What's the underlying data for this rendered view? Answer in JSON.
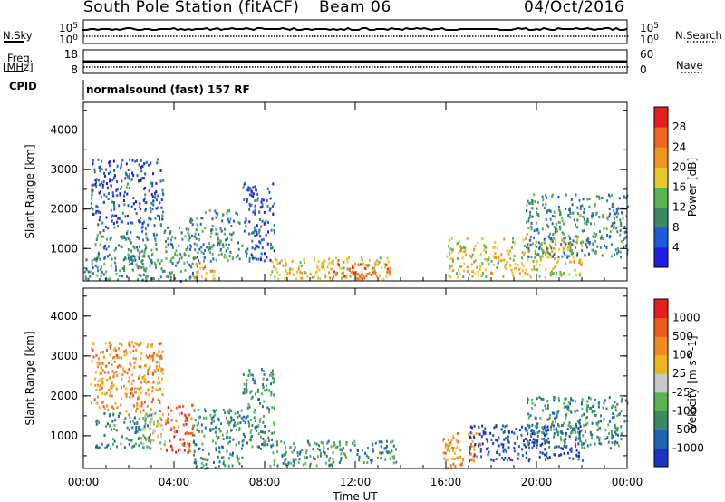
{
  "header": {
    "station": "South Pole Station (fitACF)",
    "beam": "Beam 06",
    "date": "04/Oct/2016"
  },
  "strip": {
    "nsky_label": "N.Sky",
    "nsky_ticks": [
      "10^5",
      "10^0"
    ],
    "nsearch_label": "N.Search",
    "nsearch_ticks": [
      "10^5",
      "10^0"
    ],
    "freq_label": "Freq.",
    "freq_unit": "[MHz]",
    "freq_ticks": [
      "18",
      "8"
    ],
    "nave_label": "Nave",
    "nave_ticks": [
      "60",
      "0"
    ],
    "cpid_label": "CPID",
    "cpid_value": "normalsound (fast) 157 RF"
  },
  "chart_data": [
    {
      "type": "heatmap",
      "title": "",
      "xlabel": "Time UT",
      "ylabel": "Slant Range [km]",
      "x_ticks": [
        "00:00",
        "04:00",
        "08:00",
        "12:00",
        "16:00",
        "20:00",
        "00:00"
      ],
      "xlim_hours": [
        0,
        24
      ],
      "y_ticks": [
        1000,
        2000,
        3000,
        4000
      ],
      "ylim": [
        180,
        4700
      ],
      "colorbar": {
        "label": "Power [dB]",
        "ticks": [
          "4",
          "8",
          "12",
          "16",
          "20",
          "24",
          "28"
        ],
        "colors": [
          "#1e1ee6",
          "#1e5adc",
          "#3c8a64",
          "#5ab452",
          "#e6c828",
          "#f0961e",
          "#f0641e",
          "#e61e1e"
        ]
      },
      "regions": [
        {
          "t": [
            0.5,
            3.2
          ],
          "r": [
            700,
            1600
          ],
          "level": 2
        },
        {
          "t": [
            0.3,
            3.5
          ],
          "r": [
            1600,
            3300
          ],
          "level": 1
        },
        {
          "t": [
            3.5,
            4.6
          ],
          "r": [
            700,
            1600
          ],
          "level": 2
        },
        {
          "t": [
            4.6,
            7.0
          ],
          "r": [
            700,
            2000
          ],
          "level": 2
        },
        {
          "t": [
            7.0,
            8.4
          ],
          "r": [
            700,
            2700
          ],
          "level": 1
        },
        {
          "t": [
            0.0,
            5.0
          ],
          "r": [
            200,
            800
          ],
          "level": 2
        },
        {
          "t": [
            4.8,
            5.8
          ],
          "r": [
            250,
            700
          ],
          "level": 5
        },
        {
          "t": [
            8.2,
            13.5
          ],
          "r": [
            250,
            800
          ],
          "level": 4
        },
        {
          "t": [
            11.0,
            13.5
          ],
          "r": [
            250,
            700
          ],
          "level": 6
        },
        {
          "t": [
            16.0,
            22.0
          ],
          "r": [
            300,
            1300
          ],
          "level": 4
        },
        {
          "t": [
            19.5,
            24.0
          ],
          "r": [
            800,
            2400
          ],
          "level": 2
        }
      ]
    },
    {
      "type": "heatmap",
      "title": "",
      "xlabel": "Time UT",
      "ylabel": "Slant Range [km]",
      "x_ticks": [
        "00:00",
        "04:00",
        "08:00",
        "12:00",
        "16:00",
        "20:00",
        "00:00"
      ],
      "xlim_hours": [
        0,
        24
      ],
      "y_ticks": [
        1000,
        2000,
        3000,
        4000
      ],
      "ylim": [
        180,
        4700
      ],
      "colorbar": {
        "label": "Velocity [m s^-1]",
        "ticks": [
          "1000",
          "500",
          "100",
          "25",
          "-25",
          "-100",
          "-500",
          "-1000"
        ],
        "colors": [
          "#1e32c8",
          "#1e64b4",
          "#3c8a64",
          "#5ab452",
          "#c8c8c8",
          "#f0b41e",
          "#f08c1e",
          "#f05a1e",
          "#e61e1e"
        ]
      },
      "regions": [
        {
          "t": [
            0.5,
            3.0
          ],
          "r": [
            700,
            1600
          ],
          "level": 2
        },
        {
          "t": [
            2.5,
            3.6
          ],
          "r": [
            700,
            1600
          ],
          "level": 4
        },
        {
          "t": [
            0.3,
            3.5
          ],
          "r": [
            1600,
            3400
          ],
          "level": 6
        },
        {
          "t": [
            3.6,
            4.8
          ],
          "r": [
            600,
            1800
          ],
          "level": 7
        },
        {
          "t": [
            4.8,
            7.0
          ],
          "r": [
            200,
            1700
          ],
          "level": 2
        },
        {
          "t": [
            7.0,
            8.4
          ],
          "r": [
            700,
            2700
          ],
          "level": 2
        },
        {
          "t": [
            8.2,
            13.8
          ],
          "r": [
            250,
            900
          ],
          "level": 2
        },
        {
          "t": [
            15.8,
            17.5
          ],
          "r": [
            200,
            1100
          ],
          "level": 6
        },
        {
          "t": [
            17.0,
            22.0
          ],
          "r": [
            400,
            1300
          ],
          "level": 0
        },
        {
          "t": [
            19.5,
            24.0
          ],
          "r": [
            700,
            2000
          ],
          "level": 2
        }
      ]
    }
  ]
}
